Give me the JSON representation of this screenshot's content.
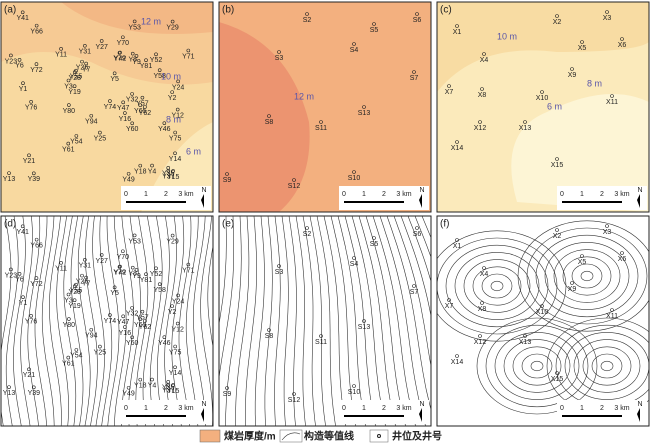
{
  "panels": [
    {
      "label": "(a)",
      "contour_labels": [
        "12 m",
        "10 m",
        "8 m",
        "6 m"
      ],
      "wells": [
        "Y13",
        "Y11",
        "Y65",
        "Y61",
        "Y62",
        "Y60",
        "Y52",
        "Y54",
        "Y53",
        "Y32",
        "Y14",
        "Y76",
        "Y75",
        "Y16",
        "Y15",
        "Y55",
        "Y58",
        "Y72",
        "Y7",
        "Y12",
        "Y18",
        "Y6",
        "Y74",
        "Y31",
        "Y29",
        "Y28",
        "Y49",
        "Y27",
        "Y26",
        "Y19",
        "Y80",
        "Y79",
        "Y2",
        "Y46",
        "Y47",
        "Y25",
        "Y24",
        "Y9",
        "Y5",
        "Y3",
        "Y4",
        "Y21",
        "Y1",
        "Y66",
        "Y71",
        "Y70",
        "Y94",
        "Y39",
        "Y35",
        "Y37",
        "Y81",
        "Y23",
        "Y41",
        "Y42",
        "Y57",
        "Y8"
      ]
    },
    {
      "label": "(b)",
      "contour_labels": [
        "12 m"
      ],
      "wells": [
        "S2",
        "S6",
        "S5",
        "S4",
        "S3",
        "S7",
        "S8",
        "S11",
        "S13",
        "S9",
        "S12",
        "S10"
      ]
    },
    {
      "label": "(c)",
      "contour_labels": [
        "10 m",
        "8 m",
        "6 m"
      ],
      "wells": [
        "X3",
        "X2",
        "X1",
        "X6",
        "X5",
        "X4",
        "X9",
        "X7",
        "X8",
        "X10",
        "X11",
        "X12",
        "X13",
        "X14",
        "X15"
      ]
    },
    {
      "label": "(d)"
    },
    {
      "label": "(e)"
    },
    {
      "label": "(f)"
    }
  ],
  "scale_bar": {
    "ticks": [
      "0",
      "1",
      "2",
      "3 km"
    ],
    "north": "N"
  },
  "legend": {
    "thickness": "煤岩厚度/m",
    "contour": "构造等值线",
    "well": "井位及井号"
  }
}
